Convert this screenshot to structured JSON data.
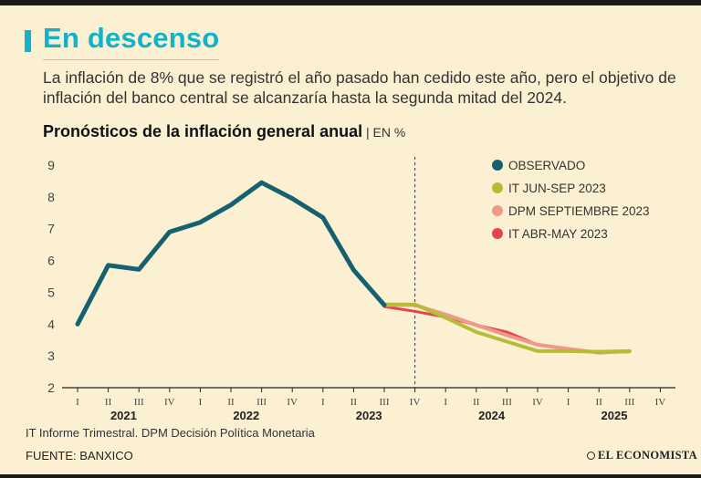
{
  "header": {
    "title": "En descenso",
    "intro": "La inflación de 8% que se registró el año pasado han cedido este año, pero el objetivo de inflación del banco central se alcanzaría hasta la segunda mitad del 2024.",
    "accent_color": "#10b3c9"
  },
  "chart_heading": {
    "title": "Pronósticos de la inflación general anual",
    "unit": "EN %"
  },
  "chart_data": {
    "type": "line",
    "title": "Pronósticos de la inflación general anual",
    "ylabel": "EN %",
    "xlabel": "",
    "ylim": [
      2,
      9
    ],
    "yticks": [
      2,
      3,
      4,
      5,
      6,
      7,
      8,
      9
    ],
    "categories": [
      "I",
      "II",
      "III",
      "IV",
      "I",
      "II",
      "III",
      "IV",
      "I",
      "II",
      "III",
      "IV",
      "I",
      "II",
      "III",
      "IV",
      "I",
      "II",
      "III",
      "IV"
    ],
    "years": [
      {
        "label": "2021",
        "start": 0,
        "end": 3
      },
      {
        "label": "2022",
        "start": 4,
        "end": 7
      },
      {
        "label": "2023",
        "start": 8,
        "end": 11
      },
      {
        "label": "2024",
        "start": 12,
        "end": 15
      },
      {
        "label": "2025",
        "start": 16,
        "end": 19
      }
    ],
    "forecast_divider_index": 11,
    "series": [
      {
        "name": "OBSERVADO",
        "color": "#15616f",
        "x": [
          0,
          1,
          2,
          3,
          4,
          5,
          6,
          7,
          8,
          9,
          10
        ],
        "values": [
          4.0,
          5.85,
          5.72,
          6.9,
          7.2,
          7.75,
          8.45,
          7.95,
          7.35,
          5.7,
          4.6
        ]
      },
      {
        "name": "IT JUN-SEP 2023",
        "color": "#b5bd37",
        "x": [
          9,
          10,
          11,
          12,
          13,
          14,
          15,
          16,
          17,
          18
        ],
        "values": [
          5.7,
          4.62,
          4.62,
          4.2,
          3.75,
          3.45,
          3.15,
          3.15,
          3.13,
          3.15
        ]
      },
      {
        "name": "DPM SEPTIEMBRE 2023",
        "color": "#ee9a86",
        "x": [
          10,
          11,
          12,
          13,
          14,
          15,
          16,
          17,
          18
        ],
        "values": [
          4.6,
          4.6,
          4.3,
          3.97,
          3.65,
          3.35,
          3.22,
          3.1,
          3.15
        ]
      },
      {
        "name": "IT ABR-MAY 2023",
        "color": "#e5444c",
        "x": [
          10,
          11,
          12,
          13,
          14,
          15,
          16,
          17,
          18
        ],
        "values": [
          4.55,
          4.4,
          4.22,
          3.97,
          3.75,
          3.35,
          3.2,
          3.1,
          3.13
        ]
      }
    ],
    "legend_position": "top-right"
  },
  "footer": {
    "note": "IT Informe Trimestral. DPM Decisión Política Monetaria",
    "source": "FUENTE: BANXICO",
    "brand": "EL ECONOMISTA"
  }
}
